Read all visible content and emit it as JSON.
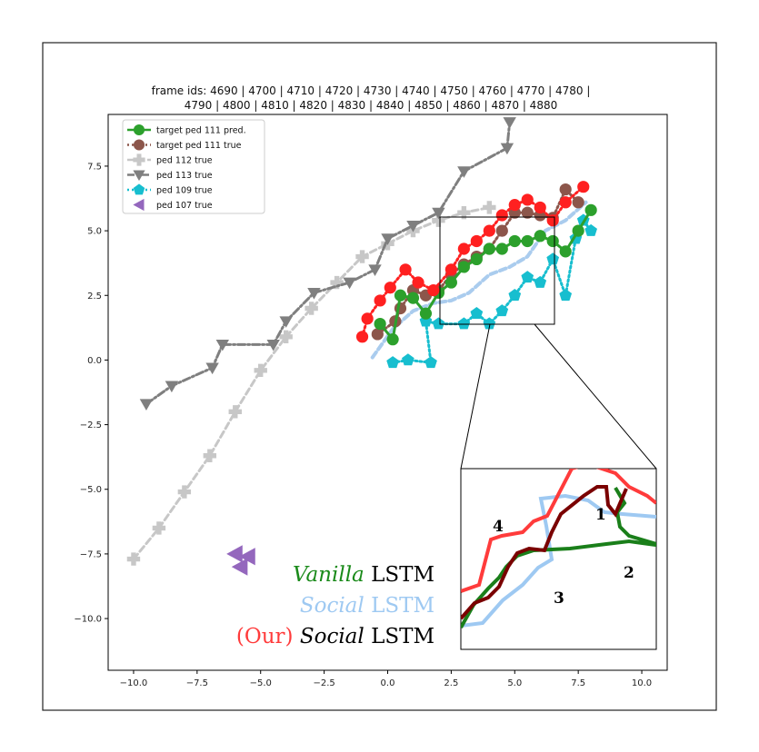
{
  "chart_data": {
    "type": "line",
    "title_lines": [
      "frame ids: 4690 | 4700 | 4710 | 4720 | 4730 | 4740 | 4750 | 4760 | 4770 | 4780 |",
      "4790 | 4800 | 4810 | 4820 | 4830 | 4840 | 4850 | 4860 | 4870 | 4880"
    ],
    "xlabel": "",
    "ylabel": "",
    "xlim": [
      -11,
      11
    ],
    "ylim": [
      -12,
      9.5
    ],
    "xticks": [
      -10.0,
      -7.5,
      -5.0,
      -2.5,
      0.0,
      2.5,
      5.0,
      7.5,
      10.0
    ],
    "xtick_labels": [
      "−10.0",
      "−7.5",
      "−5.0",
      "−2.5",
      "0.0",
      "2.5",
      "5.0",
      "7.5",
      "10.0"
    ],
    "yticks": [
      7.5,
      5.0,
      2.5,
      0.0,
      -2.5,
      -5.0,
      -7.5,
      -10.0
    ],
    "ytick_labels": [
      "7.5",
      "5.0",
      "2.5",
      "0.0",
      "−2.5",
      "−5.0",
      "−7.5",
      "−10.0"
    ],
    "grid": false,
    "legend_position": "top-left",
    "series": [
      {
        "name": "target ped 111 pred.",
        "color": "#2ca02c",
        "dash": "solid",
        "marker": "circle",
        "points": [
          [
            -0.3,
            1.4
          ],
          [
            0.2,
            0.8
          ],
          [
            0.5,
            2.5
          ],
          [
            1.0,
            2.4
          ],
          [
            1.5,
            1.8
          ],
          [
            2.0,
            2.6
          ],
          [
            2.5,
            3.0
          ],
          [
            3.0,
            3.6
          ],
          [
            3.5,
            3.9
          ],
          [
            4.0,
            4.3
          ],
          [
            4.5,
            4.3
          ],
          [
            5.0,
            4.6
          ],
          [
            5.5,
            4.6
          ],
          [
            6.0,
            4.8
          ],
          [
            6.5,
            4.6
          ],
          [
            7.0,
            4.2
          ],
          [
            7.5,
            5.0
          ],
          [
            8.0,
            5.8
          ]
        ]
      },
      {
        "name": "target ped 111 true",
        "color": "#8c564b",
        "dash": "dotted",
        "marker": "circle",
        "points": [
          [
            -0.4,
            1.0
          ],
          [
            0.3,
            1.5
          ],
          [
            0.5,
            2.0
          ],
          [
            1.0,
            2.7
          ],
          [
            1.5,
            2.5
          ],
          [
            2.0,
            2.7
          ],
          [
            2.5,
            3.3
          ],
          [
            3.0,
            3.7
          ],
          [
            3.5,
            4.0
          ],
          [
            4.0,
            4.3
          ],
          [
            4.5,
            5.0
          ],
          [
            5.0,
            5.7
          ],
          [
            5.5,
            5.7
          ],
          [
            6.0,
            5.6
          ],
          [
            6.5,
            5.5
          ],
          [
            7.0,
            6.6
          ],
          [
            7.5,
            6.1
          ]
        ]
      },
      {
        "name": "ped 112 true",
        "color": "#c7c7c7",
        "dash": "dashed",
        "marker": "plus",
        "points": [
          [
            -10.0,
            -7.7
          ],
          [
            -9.0,
            -6.5
          ],
          [
            -8.0,
            -5.1
          ],
          [
            -7.0,
            -3.7
          ],
          [
            -6.0,
            -2.0
          ],
          [
            -5.0,
            -0.4
          ],
          [
            -4.0,
            0.9
          ],
          [
            -3.0,
            2.0
          ],
          [
            -2.0,
            3.0
          ],
          [
            -1.0,
            4.0
          ],
          [
            0.0,
            4.5
          ],
          [
            1.0,
            5.0
          ],
          [
            2.0,
            5.4
          ],
          [
            3.0,
            5.7
          ],
          [
            4.0,
            5.9
          ]
        ]
      },
      {
        "name": "ped 113 true",
        "color": "#7f7f7f",
        "dash": "dashdot",
        "marker": "triangle-down",
        "points": [
          [
            -9.5,
            -1.7
          ],
          [
            -8.5,
            -1.0
          ],
          [
            -6.9,
            -0.3
          ],
          [
            -6.5,
            0.6
          ],
          [
            -4.5,
            0.6
          ],
          [
            -4.0,
            1.5
          ],
          [
            -2.9,
            2.6
          ],
          [
            -1.5,
            3.0
          ],
          [
            -0.5,
            3.5
          ],
          [
            0.0,
            4.7
          ],
          [
            1.0,
            5.2
          ],
          [
            2.0,
            5.7
          ],
          [
            3.0,
            7.3
          ],
          [
            4.7,
            8.2
          ],
          [
            4.8,
            9.2
          ]
        ]
      },
      {
        "name": "ped 109 true",
        "color": "#17becf",
        "dash": "dotted",
        "marker": "pentagon",
        "points": [
          [
            0.2,
            -0.1
          ],
          [
            0.8,
            0.0
          ],
          [
            1.7,
            -0.1
          ],
          [
            1.5,
            1.5
          ],
          [
            2.0,
            1.4
          ],
          [
            3.0,
            1.4
          ],
          [
            3.5,
            1.8
          ],
          [
            4.0,
            1.4
          ],
          [
            4.5,
            1.9
          ],
          [
            5.0,
            2.5
          ],
          [
            5.5,
            3.2
          ],
          [
            6.0,
            3.0
          ],
          [
            6.5,
            3.9
          ],
          [
            7.0,
            2.5
          ],
          [
            7.4,
            4.7
          ],
          [
            7.7,
            5.4
          ],
          [
            8.0,
            5.0
          ]
        ]
      },
      {
        "name": "ped 107 true",
        "color": "#9467bd",
        "dash": "none",
        "marker": "triangle-left",
        "points": [
          [
            -6.0,
            -7.5
          ],
          [
            -5.8,
            -8.0
          ],
          [
            -5.5,
            -7.6
          ]
        ]
      },
      {
        "name": "",
        "color": "#ff2020",
        "dash": "dotted",
        "marker": "circle",
        "points": [
          [
            -1.0,
            0.9
          ],
          [
            -0.8,
            1.6
          ],
          [
            -0.3,
            2.3
          ],
          [
            0.1,
            2.8
          ],
          [
            0.7,
            3.5
          ],
          [
            1.2,
            3.0
          ],
          [
            1.8,
            2.7
          ],
          [
            2.5,
            3.5
          ],
          [
            3.0,
            4.3
          ],
          [
            3.5,
            4.6
          ],
          [
            4.0,
            5.0
          ],
          [
            4.5,
            5.6
          ],
          [
            5.0,
            6.0
          ],
          [
            5.5,
            6.2
          ],
          [
            6.0,
            5.9
          ],
          [
            6.5,
            5.4
          ],
          [
            7.0,
            6.1
          ],
          [
            7.7,
            6.7
          ]
        ]
      },
      {
        "name": "",
        "color": "#aaccee",
        "dash": "dashed",
        "marker": "none",
        "points": [
          [
            -0.6,
            0.1
          ],
          [
            0.2,
            1.2
          ],
          [
            1.0,
            1.9
          ],
          [
            1.8,
            2.2
          ],
          [
            2.5,
            2.3
          ],
          [
            3.2,
            2.6
          ],
          [
            4.0,
            3.3
          ],
          [
            4.8,
            3.6
          ],
          [
            5.5,
            4.0
          ],
          [
            6.2,
            5.0
          ],
          [
            7.0,
            5.4
          ],
          [
            7.8,
            6.1
          ]
        ]
      }
    ],
    "annotation_lines": [
      {
        "italic": "Vanilla",
        "plain": "LSTM",
        "italic_color": "#1a8a1a",
        "plain_color": "#000000"
      },
      {
        "italic": "Social",
        "plain": "LSTM",
        "italic_color": "#9ec9f2",
        "plain_color": "#9ec9f2"
      },
      {
        "prefix": "(Our)",
        "italic": "Social",
        "plain": "LSTM",
        "prefix_color": "#ff3b3b",
        "italic_color": "#000000",
        "plain_color": "#000000"
      }
    ],
    "inset_labels": [
      "1",
      "2",
      "3",
      "4"
    ]
  }
}
